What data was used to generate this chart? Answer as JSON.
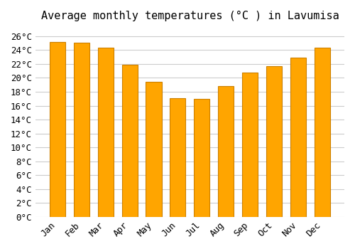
{
  "title": "Average monthly temperatures (°C ) in Lavumisa",
  "months": [
    "Jan",
    "Feb",
    "Mar",
    "Apr",
    "May",
    "Jun",
    "Jul",
    "Aug",
    "Sep",
    "Oct",
    "Nov",
    "Dec"
  ],
  "values": [
    25.2,
    25.0,
    24.3,
    21.9,
    19.4,
    17.1,
    17.0,
    18.8,
    20.8,
    21.7,
    22.9,
    24.3
  ],
  "bar_color": "#FFA500",
  "bar_edge_color": "#CC8000",
  "background_color": "#ffffff",
  "grid_color": "#cccccc",
  "ylim": [
    0,
    27
  ],
  "ytick_step": 2,
  "title_fontsize": 11,
  "tick_fontsize": 9,
  "font_family": "monospace"
}
